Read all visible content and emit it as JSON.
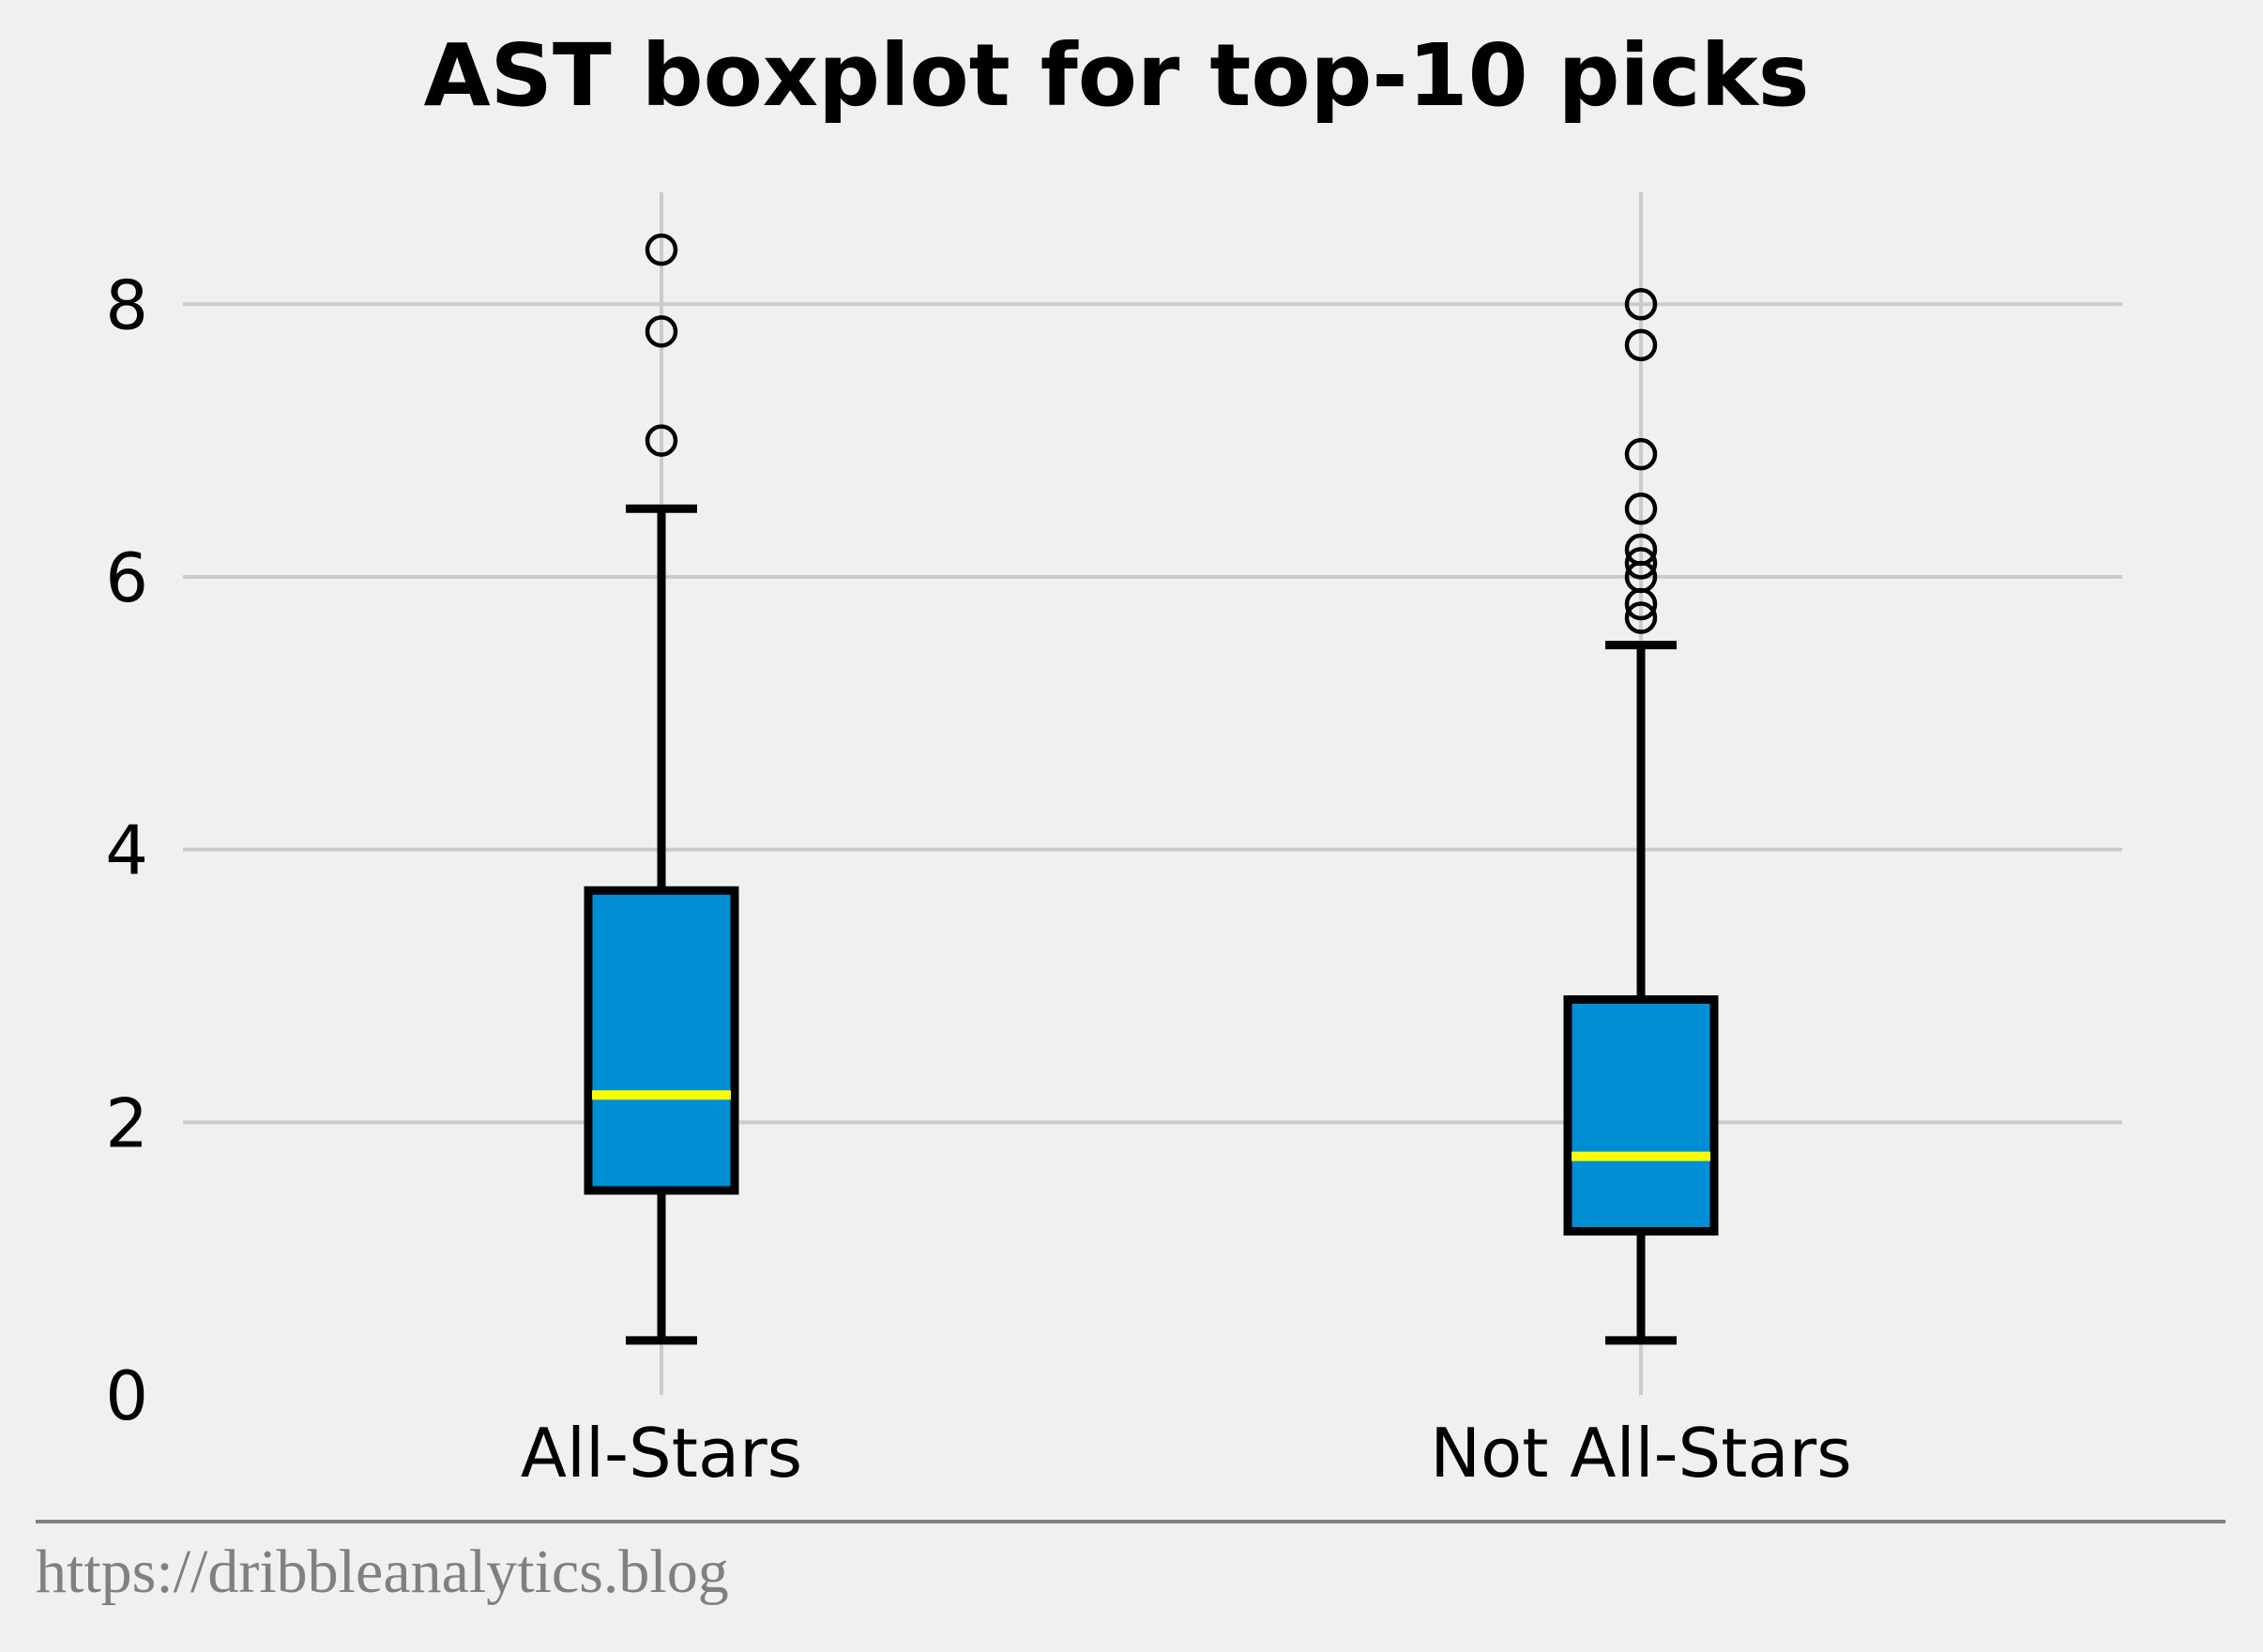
{
  "chart_data": {
    "type": "boxplot",
    "title": "AST boxplot for top-10 picks",
    "xlabel": "",
    "ylabel": "",
    "categories": [
      "All-Stars",
      "Not All-Stars"
    ],
    "ylim": [
      0,
      8.8
    ],
    "yticks": [
      0,
      2,
      4,
      6,
      8
    ],
    "grid": true,
    "boxes": [
      {
        "category": "All-Stars",
        "whisker_low": 0.4,
        "q1": 1.5,
        "median": 2.2,
        "q3": 3.7,
        "whisker_high": 6.5,
        "outliers": [
          7.0,
          7.8,
          8.4
        ]
      },
      {
        "category": "Not All-Stars",
        "whisker_low": 0.4,
        "q1": 1.2,
        "median": 1.75,
        "q3": 2.9,
        "whisker_high": 5.5,
        "outliers": [
          5.7,
          5.8,
          6.0,
          6.1,
          6.2,
          6.5,
          6.9,
          7.7,
          8.0
        ]
      }
    ],
    "colors": {
      "background": "#f0f0f0",
      "box_fill": "#008fd5",
      "box_edge": "#000000",
      "median": "#ffff00",
      "grid": "#cbcbcb"
    }
  },
  "footer": {
    "source": "https://dribbleanalytics.blog"
  }
}
